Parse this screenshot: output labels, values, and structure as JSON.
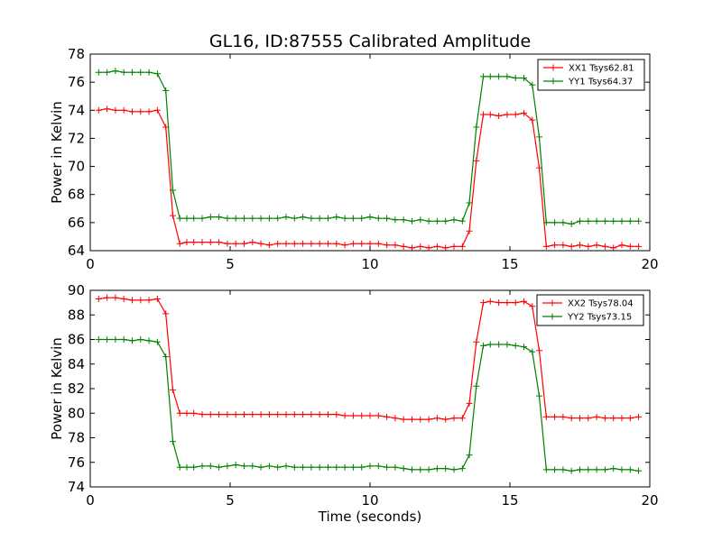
{
  "chart_data": [
    {
      "type": "line",
      "title": "GL16, ID:87555 Calibrated Amplitude",
      "xlabel": "",
      "ylabel": "Power in Kelvin",
      "xlim": [
        0,
        20
      ],
      "ylim": [
        64,
        78
      ],
      "xticks": [
        0,
        5,
        10,
        15,
        20
      ],
      "yticks": [
        64,
        66,
        68,
        70,
        72,
        74,
        76,
        78
      ],
      "legend_position": "top-right",
      "x": [
        0.3,
        0.6,
        0.9,
        1.2,
        1.5,
        1.8,
        2.1,
        2.4,
        2.7,
        2.95,
        3.2,
        3.45,
        3.7,
        4.0,
        4.3,
        4.6,
        4.9,
        5.2,
        5.5,
        5.8,
        6.1,
        6.4,
        6.7,
        7.0,
        7.3,
        7.6,
        7.9,
        8.2,
        8.5,
        8.8,
        9.1,
        9.4,
        9.7,
        10.0,
        10.3,
        10.6,
        10.9,
        11.2,
        11.5,
        11.8,
        12.1,
        12.4,
        12.7,
        13.0,
        13.3,
        13.55,
        13.8,
        14.05,
        14.3,
        14.6,
        14.9,
        15.2,
        15.5,
        15.8,
        16.05,
        16.3,
        16.6,
        16.9,
        17.2,
        17.5,
        17.8,
        18.1,
        18.4,
        18.7,
        19.0,
        19.3,
        19.6
      ],
      "series": [
        {
          "name": "XX1 Tsys62.81",
          "color": "#ff0000",
          "values": [
            74.0,
            74.1,
            74.0,
            74.0,
            73.9,
            73.9,
            73.9,
            74.0,
            72.8,
            66.5,
            64.5,
            64.6,
            64.6,
            64.6,
            64.6,
            64.6,
            64.5,
            64.5,
            64.5,
            64.6,
            64.5,
            64.4,
            64.5,
            64.5,
            64.5,
            64.5,
            64.5,
            64.5,
            64.5,
            64.5,
            64.4,
            64.5,
            64.5,
            64.5,
            64.5,
            64.4,
            64.4,
            64.3,
            64.2,
            64.3,
            64.2,
            64.3,
            64.2,
            64.3,
            64.3,
            65.4,
            70.4,
            73.7,
            73.7,
            73.6,
            73.7,
            73.7,
            73.8,
            73.3,
            69.9,
            64.3,
            64.4,
            64.4,
            64.3,
            64.4,
            64.3,
            64.4,
            64.3,
            64.2,
            64.4,
            64.3,
            64.3
          ]
        },
        {
          "name": "YY1 Tsys64.37",
          "color": "#008000",
          "values": [
            76.7,
            76.7,
            76.8,
            76.7,
            76.7,
            76.7,
            76.7,
            76.6,
            75.4,
            68.3,
            66.3,
            66.3,
            66.3,
            66.3,
            66.4,
            66.4,
            66.3,
            66.3,
            66.3,
            66.3,
            66.3,
            66.3,
            66.3,
            66.4,
            66.3,
            66.4,
            66.3,
            66.3,
            66.3,
            66.4,
            66.3,
            66.3,
            66.3,
            66.4,
            66.3,
            66.3,
            66.2,
            66.2,
            66.1,
            66.2,
            66.1,
            66.1,
            66.1,
            66.2,
            66.1,
            67.4,
            72.8,
            76.4,
            76.4,
            76.4,
            76.4,
            76.3,
            76.3,
            75.8,
            72.1,
            66.0,
            66.0,
            66.0,
            65.9,
            66.1,
            66.1,
            66.1,
            66.1,
            66.1,
            66.1,
            66.1,
            66.1
          ]
        }
      ]
    },
    {
      "type": "line",
      "title": "",
      "xlabel": "Time (seconds)",
      "ylabel": "Power in Kelvin",
      "xlim": [
        0,
        20
      ],
      "ylim": [
        74,
        90
      ],
      "xticks": [
        0,
        5,
        10,
        15,
        20
      ],
      "yticks": [
        74,
        76,
        78,
        80,
        82,
        84,
        86,
        88,
        90
      ],
      "legend_position": "top-right",
      "x": [
        0.3,
        0.6,
        0.9,
        1.2,
        1.5,
        1.8,
        2.1,
        2.4,
        2.7,
        2.95,
        3.2,
        3.45,
        3.7,
        4.0,
        4.3,
        4.6,
        4.9,
        5.2,
        5.5,
        5.8,
        6.1,
        6.4,
        6.7,
        7.0,
        7.3,
        7.6,
        7.9,
        8.2,
        8.5,
        8.8,
        9.1,
        9.4,
        9.7,
        10.0,
        10.3,
        10.6,
        10.9,
        11.2,
        11.5,
        11.8,
        12.1,
        12.4,
        12.7,
        13.0,
        13.3,
        13.55,
        13.8,
        14.05,
        14.3,
        14.6,
        14.9,
        15.2,
        15.5,
        15.8,
        16.05,
        16.3,
        16.6,
        16.9,
        17.2,
        17.5,
        17.8,
        18.1,
        18.4,
        18.7,
        19.0,
        19.3,
        19.6
      ],
      "series": [
        {
          "name": "XX2 Tsys78.04",
          "color": "#ff0000",
          "values": [
            89.3,
            89.4,
            89.4,
            89.3,
            89.2,
            89.2,
            89.2,
            89.3,
            88.1,
            81.9,
            80.0,
            80.0,
            80.0,
            79.9,
            79.9,
            79.9,
            79.9,
            79.9,
            79.9,
            79.9,
            79.9,
            79.9,
            79.9,
            79.9,
            79.9,
            79.9,
            79.9,
            79.9,
            79.9,
            79.9,
            79.8,
            79.8,
            79.8,
            79.8,
            79.8,
            79.7,
            79.6,
            79.5,
            79.5,
            79.5,
            79.5,
            79.6,
            79.5,
            79.6,
            79.6,
            80.8,
            85.8,
            89.0,
            89.1,
            89.0,
            89.0,
            89.0,
            89.1,
            88.7,
            85.1,
            79.7,
            79.7,
            79.7,
            79.6,
            79.6,
            79.6,
            79.7,
            79.6,
            79.6,
            79.6,
            79.6,
            79.7
          ]
        },
        {
          "name": "YY2 Tsys73.15",
          "color": "#008000",
          "values": [
            86.0,
            86.0,
            86.0,
            86.0,
            85.9,
            86.0,
            85.9,
            85.8,
            84.6,
            77.7,
            75.6,
            75.6,
            75.6,
            75.7,
            75.7,
            75.6,
            75.7,
            75.8,
            75.7,
            75.7,
            75.6,
            75.7,
            75.6,
            75.7,
            75.6,
            75.6,
            75.6,
            75.6,
            75.6,
            75.6,
            75.6,
            75.6,
            75.6,
            75.7,
            75.7,
            75.6,
            75.6,
            75.5,
            75.4,
            75.4,
            75.4,
            75.5,
            75.5,
            75.4,
            75.5,
            76.6,
            82.2,
            85.5,
            85.6,
            85.6,
            85.6,
            85.5,
            85.4,
            85.0,
            81.4,
            75.4,
            75.4,
            75.4,
            75.3,
            75.4,
            75.4,
            75.4,
            75.4,
            75.5,
            75.4,
            75.4,
            75.3
          ]
        }
      ]
    }
  ]
}
